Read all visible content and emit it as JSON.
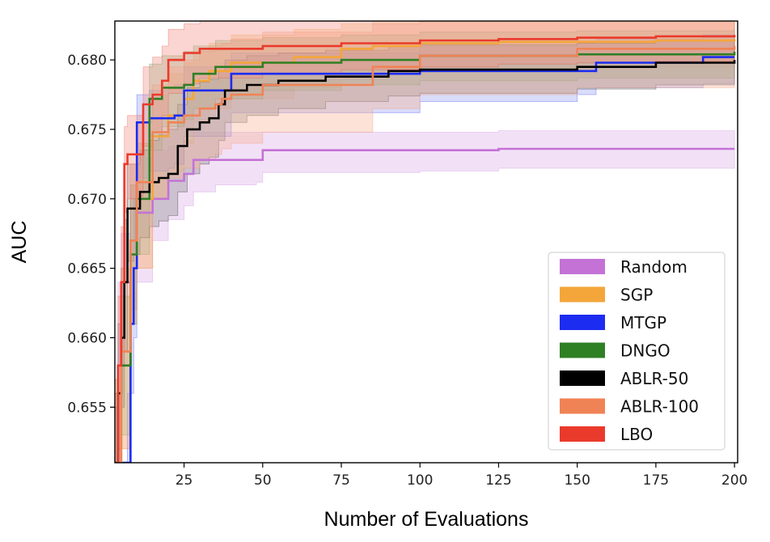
{
  "chart_data": {
    "type": "line",
    "title": "",
    "xlabel": "Number of Evaluations",
    "ylabel": "AUC",
    "xlim": [
      3,
      201
    ],
    "ylim": [
      0.651,
      0.6828
    ],
    "x_ticks": [
      25,
      50,
      75,
      100,
      125,
      150,
      175,
      200
    ],
    "x_tick_labels": [
      "25",
      "50",
      "75",
      "100",
      "125",
      "150",
      "175",
      "200"
    ],
    "y_ticks": [
      0.655,
      0.66,
      0.665,
      0.67,
      0.675,
      0.68
    ],
    "y_tick_labels": [
      "0.655",
      "0.660",
      "0.665",
      "0.670",
      "0.675",
      "0.680"
    ],
    "grid": false,
    "legend_position": "lower-right",
    "series": [
      {
        "name": "Random",
        "color": "#c472d6",
        "band_color": "#dcb0e8",
        "x": [
          3,
          4,
          5,
          8,
          10,
          15,
          20,
          25,
          28,
          35,
          48,
          50,
          100,
          125,
          200
        ],
        "mean": [
          0.651,
          0.658,
          0.664,
          0.667,
          0.669,
          0.67,
          0.6713,
          0.6718,
          0.6728,
          0.6728,
          0.6728,
          0.6735,
          0.6735,
          0.6736,
          0.6736
        ],
        "lower": [
          0.651,
          0.651,
          0.658,
          0.662,
          0.664,
          0.667,
          0.6685,
          0.6695,
          0.6705,
          0.671,
          0.6712,
          0.6719,
          0.672,
          0.6722,
          0.6722
        ],
        "upper": [
          0.655,
          0.664,
          0.6675,
          0.671,
          0.673,
          0.6735,
          0.6738,
          0.6742,
          0.6748,
          0.6748,
          0.6748,
          0.6748,
          0.6748,
          0.6749,
          0.6749
        ]
      },
      {
        "name": "SGP",
        "color": "#f4a63a",
        "band_color": "#f7c98a",
        "x": [
          3,
          5,
          8,
          10,
          15,
          20,
          25,
          28,
          33,
          40,
          60,
          75,
          85,
          100,
          125,
          150,
          175,
          200
        ],
        "mean": [
          0.651,
          0.658,
          0.667,
          0.67,
          0.6745,
          0.676,
          0.6772,
          0.6785,
          0.6792,
          0.6798,
          0.6802,
          0.6808,
          0.681,
          0.6812,
          0.6813,
          0.6813,
          0.6814,
          0.6815
        ],
        "lower": [
          0.651,
          0.652,
          0.662,
          0.665,
          0.67,
          0.672,
          0.674,
          0.6755,
          0.6765,
          0.6772,
          0.678,
          0.6786,
          0.679,
          0.6792,
          0.6793,
          0.6794,
          0.6795,
          0.6795
        ],
        "upper": [
          0.657,
          0.663,
          0.671,
          0.674,
          0.6775,
          0.679,
          0.6798,
          0.6806,
          0.6812,
          0.6818,
          0.6822,
          0.6826,
          0.6828,
          0.6829,
          0.683,
          0.6831,
          0.6831,
          0.6832
        ]
      },
      {
        "name": "MTGP",
        "color": "#1c2cf0",
        "band_color": "#9aa4f5",
        "x": [
          3,
          5,
          7,
          8,
          9,
          10,
          14,
          20,
          22,
          25,
          40,
          100,
          150,
          156,
          190,
          200
        ],
        "mean": [
          0.651,
          0.651,
          0.651,
          0.661,
          0.665,
          0.6755,
          0.6758,
          0.6758,
          0.676,
          0.6778,
          0.679,
          0.6792,
          0.6792,
          0.6798,
          0.6802,
          0.6802
        ],
        "lower": [
          0.651,
          0.651,
          0.651,
          0.656,
          0.66,
          0.6715,
          0.672,
          0.6722,
          0.6725,
          0.6745,
          0.6762,
          0.677,
          0.6775,
          0.678,
          0.6783,
          0.6783
        ],
        "upper": [
          0.651,
          0.651,
          0.656,
          0.666,
          0.67,
          0.6775,
          0.6778,
          0.678,
          0.6782,
          0.6795,
          0.6805,
          0.681,
          0.6812,
          0.6815,
          0.6818,
          0.6818
        ]
      },
      {
        "name": "DNGO",
        "color": "#2f7f25",
        "band_color": "#93bf8c",
        "x": [
          3,
          5,
          8,
          10,
          14,
          18,
          25,
          28,
          35,
          50,
          75,
          100,
          150,
          200
        ],
        "mean": [
          0.651,
          0.658,
          0.666,
          0.67,
          0.6772,
          0.678,
          0.6782,
          0.679,
          0.6795,
          0.6798,
          0.68,
          0.6803,
          0.6804,
          0.6806
        ],
        "lower": [
          0.651,
          0.653,
          0.661,
          0.666,
          0.6735,
          0.6752,
          0.6757,
          0.6765,
          0.6772,
          0.6778,
          0.6782,
          0.6785,
          0.6787,
          0.6789
        ],
        "upper": [
          0.656,
          0.663,
          0.671,
          0.674,
          0.6797,
          0.6803,
          0.6806,
          0.681,
          0.6814,
          0.6816,
          0.6818,
          0.682,
          0.6821,
          0.6822
        ]
      },
      {
        "name": "ABLR-50",
        "color": "#000000",
        "band_color": "#8f8f8f",
        "x": [
          3,
          4,
          5,
          6,
          7,
          9,
          11,
          14,
          17,
          20,
          23,
          26,
          30,
          33,
          36,
          38,
          45,
          55,
          70,
          90,
          100,
          150,
          175,
          200
        ],
        "mean": [
          0.651,
          0.656,
          0.66,
          0.664,
          0.6693,
          0.6693,
          0.6705,
          0.6712,
          0.6715,
          0.6718,
          0.6738,
          0.675,
          0.6755,
          0.6758,
          0.6768,
          0.6778,
          0.6782,
          0.6785,
          0.6788,
          0.6792,
          0.6793,
          0.6795,
          0.6798,
          0.68
        ],
        "lower": [
          0.651,
          0.651,
          0.655,
          0.659,
          0.6655,
          0.666,
          0.6672,
          0.668,
          0.6684,
          0.6688,
          0.6705,
          0.6718,
          0.6725,
          0.673,
          0.6742,
          0.6755,
          0.676,
          0.6765,
          0.677,
          0.6774,
          0.6776,
          0.6779,
          0.6782,
          0.6785
        ],
        "upper": [
          0.655,
          0.661,
          0.665,
          0.6685,
          0.6725,
          0.6725,
          0.6735,
          0.6742,
          0.6746,
          0.675,
          0.6768,
          0.678,
          0.6784,
          0.6786,
          0.6792,
          0.68,
          0.6803,
          0.6805,
          0.6807,
          0.681,
          0.6811,
          0.6812,
          0.6814,
          0.6815
        ]
      },
      {
        "name": "ABLR-100",
        "color": "#f08356",
        "band_color": "#f6b395",
        "x": [
          3,
          5,
          8,
          10,
          15,
          20,
          25,
          30,
          35,
          37,
          40,
          50,
          85,
          100,
          150,
          200
        ],
        "mean": [
          0.651,
          0.659,
          0.667,
          0.6712,
          0.6748,
          0.6755,
          0.676,
          0.6765,
          0.6768,
          0.6772,
          0.6775,
          0.6782,
          0.6795,
          0.6803,
          0.6808,
          0.681
        ],
        "lower": [
          0.651,
          0.652,
          0.661,
          0.665,
          0.67,
          0.6715,
          0.6722,
          0.6728,
          0.6732,
          0.6736,
          0.674,
          0.6748,
          0.6765,
          0.6775,
          0.678,
          0.6783
        ],
        "upper": [
          0.657,
          0.665,
          0.6725,
          0.6755,
          0.6782,
          0.6795,
          0.68,
          0.6806,
          0.681,
          0.6812,
          0.6815,
          0.682,
          0.6826,
          0.683,
          0.6834,
          0.6835
        ]
      },
      {
        "name": "LBO",
        "color": "#ea3a2b",
        "band_color": "#f29185",
        "x": [
          3,
          4,
          5,
          6,
          7,
          10,
          12,
          15,
          18,
          20,
          25,
          30,
          50,
          75,
          100,
          125,
          150,
          175,
          200
        ],
        "mean": [
          0.651,
          0.658,
          0.664,
          0.6725,
          0.6732,
          0.6732,
          0.6768,
          0.6775,
          0.6785,
          0.68,
          0.6805,
          0.6808,
          0.681,
          0.6812,
          0.6814,
          0.6815,
          0.6816,
          0.6817,
          0.6818
        ],
        "lower": [
          0.651,
          0.652,
          0.659,
          0.669,
          0.67,
          0.6702,
          0.6738,
          0.6748,
          0.676,
          0.6776,
          0.6783,
          0.6787,
          0.679,
          0.6793,
          0.6795,
          0.6797,
          0.6798,
          0.6799,
          0.68
        ],
        "upper": [
          0.656,
          0.663,
          0.668,
          0.6752,
          0.676,
          0.676,
          0.6795,
          0.6802,
          0.681,
          0.6822,
          0.6826,
          0.6829,
          0.6831,
          0.6833,
          0.6834,
          0.6835,
          0.6836,
          0.6836,
          0.6837
        ]
      }
    ]
  }
}
